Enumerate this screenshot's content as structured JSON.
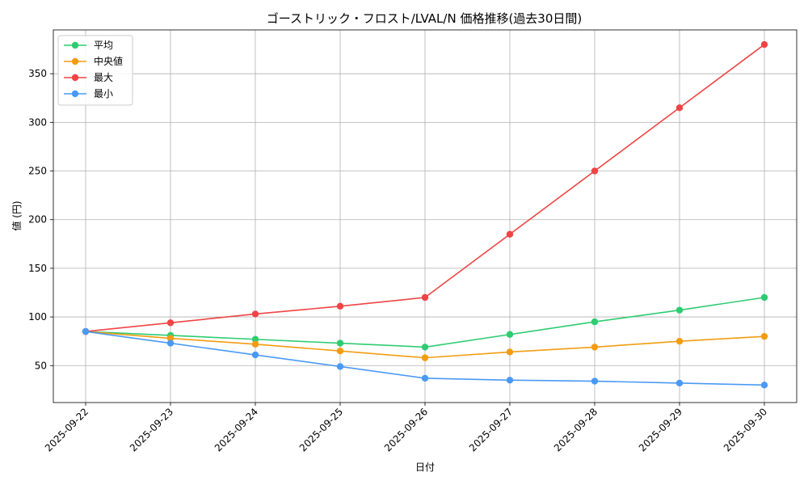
{
  "chart_data": {
    "type": "line",
    "title": "ゴーストリック・フロスト/LVAL/N 価格推移(過去30日間)",
    "xlabel": "日付",
    "ylabel": "値 (円)",
    "categories": [
      "2025-09-22",
      "2025-09-23",
      "2025-09-24",
      "2025-09-25",
      "2025-09-26",
      "2025-09-27",
      "2025-09-28",
      "2025-09-29",
      "2025-09-30"
    ],
    "ylim": [
      12,
      395
    ],
    "yticks": [
      50,
      100,
      150,
      200,
      250,
      300,
      350
    ],
    "grid": true,
    "legend_position": "top-left",
    "series": [
      {
        "name": "平均",
        "color": "#2ecc71",
        "values": [
          85,
          81,
          77,
          73,
          69,
          82,
          95,
          107,
          120
        ]
      },
      {
        "name": "中央値",
        "color": "#f39c12",
        "values": [
          85,
          78,
          72,
          65,
          58,
          64,
          69,
          75,
          80
        ]
      },
      {
        "name": "最大",
        "color": "#ef4444",
        "values": [
          85,
          94,
          103,
          111,
          120,
          185,
          250,
          315,
          380
        ]
      },
      {
        "name": "最小",
        "color": "#4a9af5",
        "values": [
          85,
          73,
          61,
          49,
          37,
          35,
          34,
          32,
          30
        ]
      }
    ]
  }
}
